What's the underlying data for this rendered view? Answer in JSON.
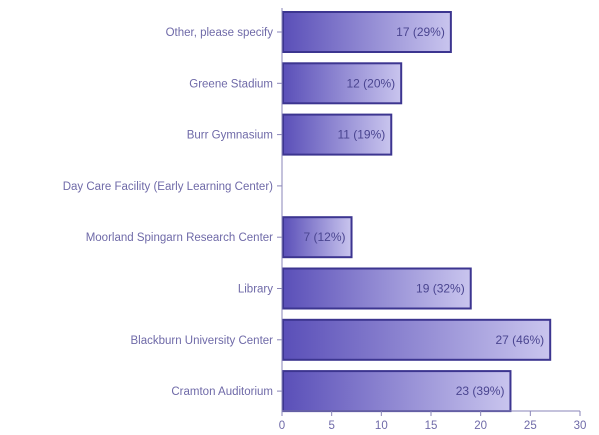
{
  "chart_data": {
    "type": "bar",
    "orientation": "horizontal",
    "categories": [
      "Other, please specify",
      "Greene Stadium",
      "Burr Gymnasium",
      "Day Care Facility (Early Learning Center)",
      "Moorland Spingarn Research Center",
      "Library",
      "Blackburn University Center",
      "Cramton Auditorium"
    ],
    "values": [
      17,
      12,
      11,
      0,
      7,
      19,
      27,
      23
    ],
    "data_labels": [
      "17 (29%)",
      "12 (20%)",
      "11 (19%)",
      "",
      "7 (12%)",
      "19 (32%)",
      "27 (46%)",
      "23 (39%)"
    ],
    "xlim": [
      0,
      30
    ],
    "x_ticks": [
      "0",
      "5",
      "10",
      "15",
      "20",
      "25",
      "30"
    ],
    "title": "",
    "xlabel": "",
    "ylabel": "",
    "grid": false,
    "colors": {
      "bar_dark": "#5a4fb8",
      "bar_light": "#c9c5ee",
      "bar_border": "#3c3590",
      "axis": "#8a86b8",
      "label_text": "#6f6aa8",
      "data_label_text": "#4a4590"
    }
  }
}
